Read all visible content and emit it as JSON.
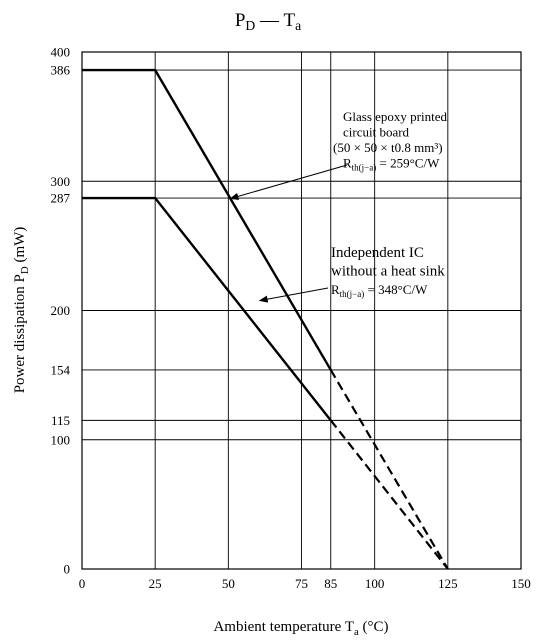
{
  "chart_data": {
    "type": "line",
    "title": "P_D — T_a",
    "xlabel": "Ambient temperature T_a (°C)",
    "ylabel": "Power dissipation P_D (mW)",
    "xlim": [
      0,
      150
    ],
    "ylim": [
      0,
      400
    ],
    "xticks": [
      0,
      25,
      50,
      75,
      85,
      100,
      125,
      150
    ],
    "yticks": [
      0,
      100,
      115,
      154,
      200,
      287,
      300,
      386,
      400
    ],
    "grid": true,
    "series": [
      {
        "name": "Glass epoxy printed circuit board",
        "solid": [
          [
            0,
            386
          ],
          [
            25,
            386
          ],
          [
            85,
            154
          ]
        ],
        "dashed": [
          [
            85,
            154
          ],
          [
            125,
            0
          ]
        ]
      },
      {
        "name": "Independent IC without a heat sink",
        "solid": [
          [
            0,
            287
          ],
          [
            25,
            287
          ],
          [
            85,
            115
          ]
        ],
        "dashed": [
          [
            85,
            115
          ],
          [
            125,
            0
          ]
        ]
      }
    ],
    "annotations": [
      {
        "lines": [
          "Glass epoxy printed",
          "circuit board",
          "(50 × 50 × t0.8 mm³)",
          "R_th(j−a) = 259°C/W"
        ],
        "points_to": [
          50,
          285
        ]
      },
      {
        "lines": [
          "Independent IC",
          "without a heat sink",
          "R_th(j−a) = 348°C/W"
        ],
        "points_to": [
          60,
          210
        ]
      }
    ]
  }
}
